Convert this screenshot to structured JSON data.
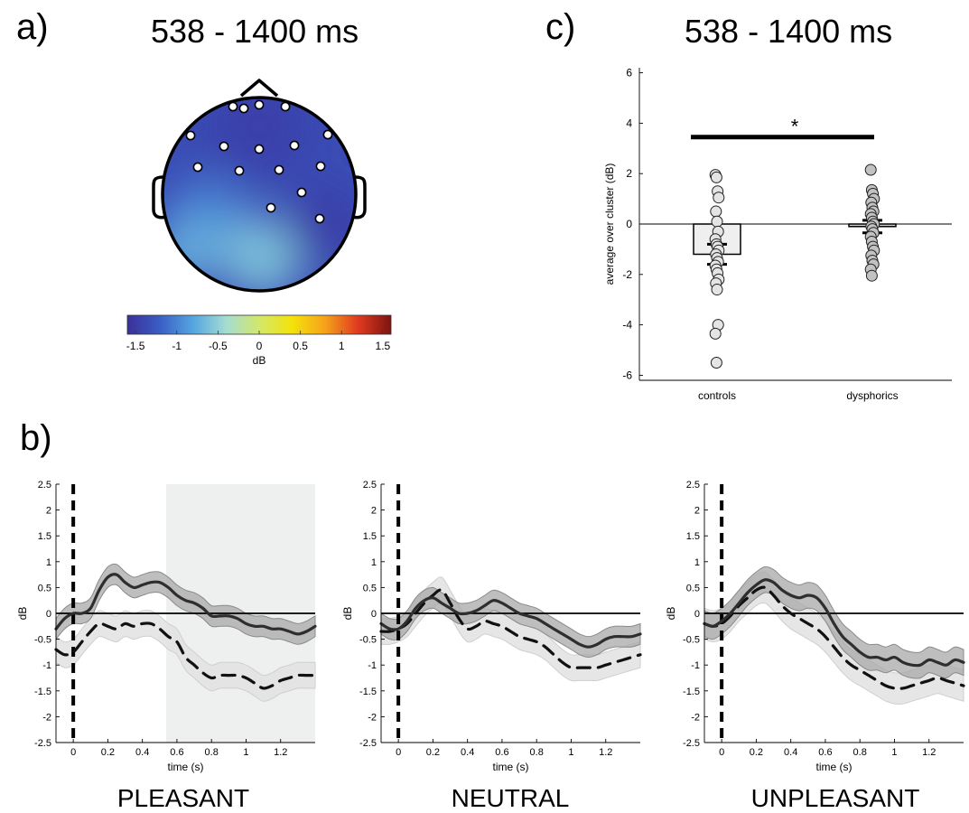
{
  "panels": {
    "a": {
      "letter": "a)",
      "title": "538 - 1400 ms"
    },
    "b": {
      "letter": "b)"
    },
    "c": {
      "letter": "c)",
      "title": "538 - 1400 ms"
    }
  },
  "colors": {
    "ink": "#000000",
    "solid_line": "#2e2e2e",
    "dark_band": "#a8a8a8",
    "light_band": "#e2e2e2",
    "sig_window": "#eef0ef",
    "bar_controls": "#efefef",
    "bar_dysphorics": "#d4d4d4"
  },
  "chart_data": [
    {
      "type": "heatmap",
      "kind": "topographic-map",
      "colorbar": {
        "range": [
          -1.6,
          1.6
        ],
        "ticks": [
          "-1.5",
          "-1",
          "-0.5",
          "0",
          "0.5",
          "1",
          "1.5"
        ],
        "tick_values": [
          -1.5,
          -1,
          -0.5,
          0,
          0.5,
          1,
          1.5
        ],
        "label": "dB",
        "colormap": [
          "#3b2f9a",
          "#3a5ec5",
          "#55a6e0",
          "#a5dcd2",
          "#d3e86a",
          "#f4e20a",
          "#f6a21b",
          "#df3a1f",
          "#7d1410"
        ]
      },
      "regions": [
        {
          "value": -0.95,
          "where": "center-left"
        },
        {
          "value": -0.6,
          "where": "lower-middle"
        },
        {
          "value": -0.7,
          "where": "lower-left"
        },
        {
          "value": -1.5,
          "where": "right-lateral"
        },
        {
          "value": -1.45,
          "where": "frontal"
        }
      ],
      "electrode_count": 16
    },
    {
      "type": "bar",
      "ylabel": "average over cluster (dB)",
      "categories": [
        "controls",
        "dysphorics"
      ],
      "values": [
        -1.2,
        -0.1
      ],
      "errors": [
        0.4,
        0.25
      ],
      "ylim": [
        -6.2,
        6.2
      ],
      "yticks": [
        -6,
        -4,
        -2,
        0,
        2,
        4,
        6
      ],
      "significance": "*",
      "points": [
        [
          1.95,
          1.85,
          1.3,
          1.05,
          0.5,
          0.1,
          -0.3,
          -0.6,
          -0.8,
          -0.9,
          -1.05,
          -1.2,
          -1.35,
          -1.5,
          -1.65,
          -1.8,
          -1.95,
          -2.2,
          -2.35,
          -2.6,
          -4.0,
          -4.35,
          -5.5
        ],
        [
          2.15,
          1.35,
          1.2,
          1.0,
          0.85,
          0.65,
          0.5,
          0.4,
          0.25,
          0.1,
          0.0,
          -0.1,
          -0.2,
          -0.35,
          -0.5,
          -0.7,
          -0.9,
          -1.05,
          -1.25,
          -1.45,
          -1.6,
          -1.8,
          -2.05
        ]
      ]
    },
    {
      "type": "line",
      "title": "PLEASANT",
      "xlabel": "time (s)",
      "ylabel": "dB",
      "xlim": [
        -0.1,
        1.4
      ],
      "ylim": [
        -2.5,
        2.5
      ],
      "xticks": [
        "0",
        "0.2",
        "0.4",
        "0.6",
        "0.8",
        "1",
        "1.2"
      ],
      "xtick_values": [
        0,
        0.2,
        0.4,
        0.6,
        0.8,
        1.0,
        1.2
      ],
      "yticks": [
        "-2.5",
        "-2",
        "-1.5",
        "-1",
        "-0.5",
        "0",
        "0.5",
        "1",
        "1.5",
        "2",
        "2.5"
      ],
      "ytick_values": [
        -2.5,
        -2,
        -1.5,
        -1,
        -0.5,
        0,
        0.5,
        1,
        1.5,
        2,
        2.5
      ],
      "shaded_window": [
        0.538,
        1.4
      ],
      "x": [
        -0.1,
        -0.05,
        0,
        0.05,
        0.1,
        0.15,
        0.2,
        0.25,
        0.3,
        0.35,
        0.4,
        0.45,
        0.5,
        0.55,
        0.6,
        0.65,
        0.7,
        0.75,
        0.8,
        0.85,
        0.9,
        0.95,
        1.0,
        1.05,
        1.1,
        1.15,
        1.2,
        1.25,
        1.3,
        1.35,
        1.4
      ],
      "series": [
        {
          "style": "solid",
          "band": "dark",
          "values": [
            -0.3,
            -0.1,
            0.0,
            0.0,
            0.1,
            0.45,
            0.7,
            0.75,
            0.6,
            0.5,
            0.55,
            0.6,
            0.6,
            0.5,
            0.35,
            0.25,
            0.2,
            0.1,
            -0.05,
            -0.05,
            -0.05,
            -0.1,
            -0.2,
            -0.25,
            -0.25,
            -0.3,
            -0.3,
            -0.35,
            -0.4,
            -0.35,
            -0.25
          ],
          "sem": 0.2
        },
        {
          "style": "dashed",
          "band": "light",
          "values": [
            -0.7,
            -0.8,
            -0.75,
            -0.55,
            -0.35,
            -0.2,
            -0.25,
            -0.3,
            -0.2,
            -0.25,
            -0.2,
            -0.2,
            -0.3,
            -0.45,
            -0.55,
            -0.85,
            -1.0,
            -1.15,
            -1.25,
            -1.2,
            -1.2,
            -1.2,
            -1.25,
            -1.35,
            -1.45,
            -1.4,
            -1.3,
            -1.25,
            -1.2,
            -1.2,
            -1.2
          ],
          "sem": 0.25
        }
      ]
    },
    {
      "type": "line",
      "title": "NEUTRAL",
      "xlabel": "time (s)",
      "ylabel": "dB",
      "xlim": [
        -0.1,
        1.4
      ],
      "ylim": [
        -2.5,
        2.5
      ],
      "xticks": [
        "0",
        "0.2",
        "0.4",
        "0.6",
        "0.8",
        "1",
        "1.2"
      ],
      "xtick_values": [
        0,
        0.2,
        0.4,
        0.6,
        0.8,
        1.0,
        1.2
      ],
      "yticks": [
        "-2.5",
        "-2",
        "-1.5",
        "-1",
        "-0.5",
        "0",
        "0.5",
        "1",
        "1.5",
        "2",
        "2.5"
      ],
      "ytick_values": [
        -2.5,
        -2,
        -1.5,
        -1,
        -0.5,
        0,
        0.5,
        1,
        1.5,
        2,
        2.5
      ],
      "x": [
        -0.1,
        -0.05,
        0,
        0.05,
        0.1,
        0.15,
        0.2,
        0.25,
        0.3,
        0.35,
        0.4,
        0.45,
        0.5,
        0.55,
        0.6,
        0.65,
        0.7,
        0.75,
        0.8,
        0.85,
        0.9,
        0.95,
        1.0,
        1.05,
        1.1,
        1.15,
        1.2,
        1.25,
        1.3,
        1.35,
        1.4
      ],
      "series": [
        {
          "style": "solid",
          "band": "dark",
          "values": [
            -0.2,
            -0.3,
            -0.3,
            -0.15,
            0.1,
            0.25,
            0.3,
            0.2,
            0.1,
            0.0,
            0.0,
            0.05,
            0.15,
            0.25,
            0.2,
            0.1,
            0.0,
            -0.05,
            -0.1,
            -0.2,
            -0.3,
            -0.4,
            -0.5,
            -0.6,
            -0.65,
            -0.6,
            -0.5,
            -0.45,
            -0.45,
            -0.45,
            -0.4
          ],
          "sem": 0.2
        },
        {
          "style": "dashed",
          "band": "light",
          "values": [
            -0.35,
            -0.35,
            -0.3,
            -0.2,
            0.0,
            0.2,
            0.35,
            0.45,
            0.2,
            -0.1,
            -0.3,
            -0.25,
            -0.15,
            -0.2,
            -0.25,
            -0.35,
            -0.45,
            -0.5,
            -0.55,
            -0.65,
            -0.8,
            -0.95,
            -1.05,
            -1.05,
            -1.05,
            -1.05,
            -1.0,
            -0.95,
            -0.9,
            -0.85,
            -0.8
          ],
          "sem": 0.25
        }
      ]
    },
    {
      "type": "line",
      "title": "UNPLEASANT",
      "xlabel": "time (s)",
      "ylabel": "dB",
      "xlim": [
        -0.1,
        1.4
      ],
      "ylim": [
        -2.5,
        2.5
      ],
      "xticks": [
        "0",
        "0.2",
        "0.4",
        "0.6",
        "0.8",
        "1",
        "1.2"
      ],
      "xtick_values": [
        0,
        0.2,
        0.4,
        0.6,
        0.8,
        1.0,
        1.2
      ],
      "yticks": [
        "-2.5",
        "-2",
        "-1.5",
        "-1",
        "-0.5",
        "0",
        "0.5",
        "1",
        "1.5",
        "2",
        "2.5"
      ],
      "ytick_values": [
        -2.5,
        -2,
        -1.5,
        -1,
        -0.5,
        0,
        0.5,
        1,
        1.5,
        2,
        2.5
      ],
      "x": [
        -0.1,
        -0.05,
        0,
        0.05,
        0.1,
        0.15,
        0.2,
        0.25,
        0.3,
        0.35,
        0.4,
        0.45,
        0.5,
        0.55,
        0.6,
        0.65,
        0.7,
        0.75,
        0.8,
        0.85,
        0.9,
        0.95,
        1.0,
        1.05,
        1.1,
        1.15,
        1.2,
        1.25,
        1.3,
        1.35,
        1.4
      ],
      "series": [
        {
          "style": "solid",
          "band": "dark",
          "values": [
            -0.2,
            -0.25,
            -0.15,
            0.0,
            0.2,
            0.4,
            0.55,
            0.65,
            0.6,
            0.45,
            0.35,
            0.3,
            0.35,
            0.3,
            0.1,
            -0.2,
            -0.45,
            -0.6,
            -0.75,
            -0.85,
            -0.85,
            -0.9,
            -0.85,
            -0.95,
            -1.0,
            -1.0,
            -0.9,
            -0.95,
            -1.0,
            -0.9,
            -0.95
          ],
          "sem": 0.25
        },
        {
          "style": "dashed",
          "band": "light",
          "values": [
            -0.2,
            -0.25,
            -0.2,
            -0.05,
            0.15,
            0.3,
            0.45,
            0.5,
            0.35,
            0.15,
            0.0,
            -0.1,
            -0.2,
            -0.3,
            -0.45,
            -0.65,
            -0.85,
            -1.0,
            -1.1,
            -1.2,
            -1.3,
            -1.4,
            -1.45,
            -1.45,
            -1.4,
            -1.35,
            -1.3,
            -1.25,
            -1.3,
            -1.35,
            -1.4
          ],
          "sem": 0.3
        }
      ]
    }
  ]
}
